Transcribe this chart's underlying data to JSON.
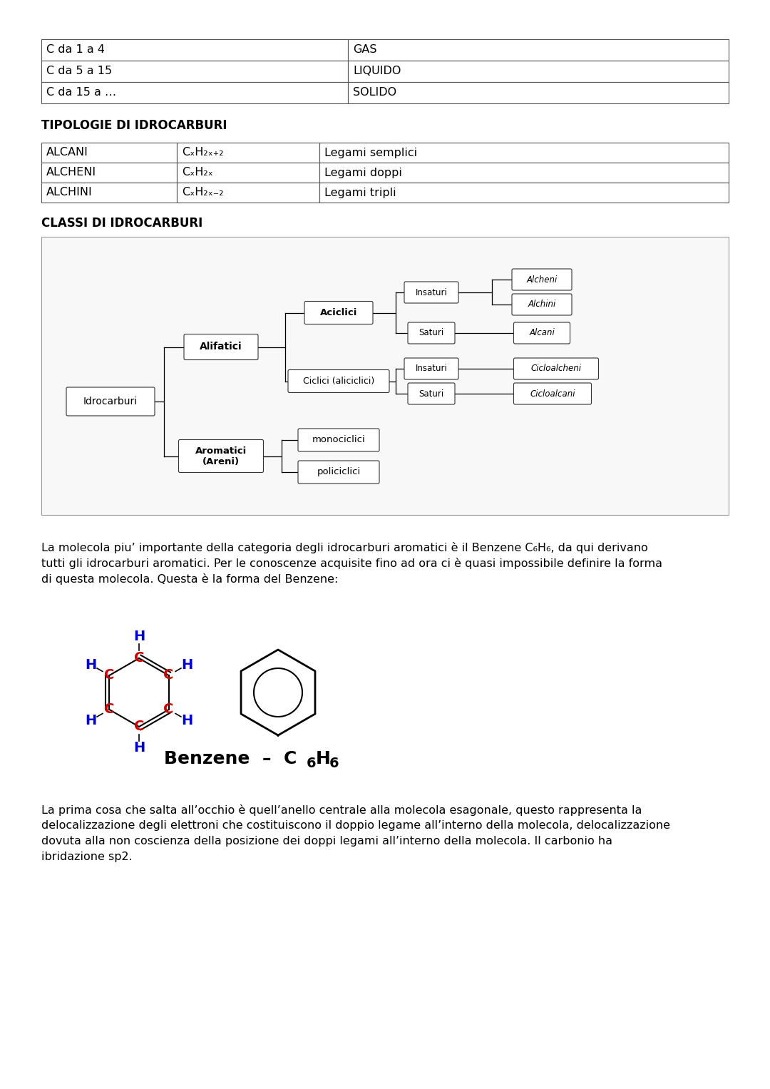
{
  "bg_color": "#ffffff",
  "table1_rows": [
    [
      "C da 1 a 4",
      "GAS"
    ],
    [
      "C da 5 a 15",
      "LIQUIDO"
    ],
    [
      "C da 15 a …",
      "SOLIDO"
    ]
  ],
  "section1_title": "TIPOLOGIE DI IDROCARBURI",
  "table2_rows": [
    [
      "ALCANI",
      "CₓH₂ₓ₊₂",
      "Legami semplici"
    ],
    [
      "ALCHENI",
      "CₓH₂ₓ",
      "Legami doppi"
    ],
    [
      "ALCHINI",
      "CₓH₂ₓ₋₂",
      "Legami tripli"
    ]
  ],
  "section2_title": "CLASSI DI IDROCARBURI",
  "para1_line1": "La molecola piu’ importante della categoria degli idrocarburi aromatici è il Benzene C₆H₆, da qui derivano",
  "para1_line2": "tutti gli idrocarburi aromatici. Per le conoscenze acquisite fino ad ora ci è quasi impossibile definire la forma",
  "para1_line3": "di questa molecola. Questa è la forma del Benzene:",
  "para2_line1": "La prima cosa che salta all’occhio è quell’anello centrale alla molecola esagonale, questo rappresenta la",
  "para2_line2": "delocalizzazione degli elettroni che costituiscono il doppio legame all’interno della molecola, delocalizzazione",
  "para2_line3": "dovuta alla non coscienza della posizione dei doppi legami all’interno della molecola. Il carbonio ha",
  "para2_line4": "ibridazione sp2.",
  "colors": {
    "black": "#000000",
    "red": "#cc0000",
    "blue": "#0000cc"
  }
}
